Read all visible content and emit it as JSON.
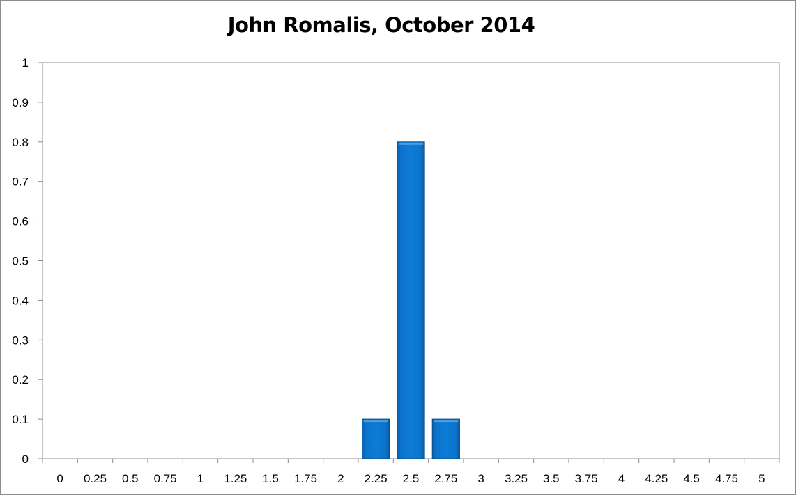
{
  "chart_data": {
    "type": "bar",
    "title": "John Romalis, October 2014",
    "xlabel": "",
    "ylabel": "",
    "categories": [
      "0",
      "0.25",
      "0.5",
      "0.75",
      "1",
      "1.25",
      "1.5",
      "1.75",
      "2",
      "2.25",
      "2.5",
      "2.75",
      "3",
      "3.25",
      "3.5",
      "3.75",
      "4",
      "4.25",
      "4.5",
      "4.75",
      "5"
    ],
    "values": [
      0,
      0,
      0,
      0,
      0,
      0,
      0,
      0,
      0,
      0.1,
      0.8,
      0.1,
      0,
      0,
      0,
      0,
      0,
      0,
      0,
      0,
      0
    ],
    "ylim": [
      0,
      1
    ],
    "yticks": [
      "0",
      "0.1",
      "0.2",
      "0.3",
      "0.4",
      "0.5",
      "0.6",
      "0.7",
      "0.8",
      "0.9",
      "1"
    ],
    "grid": false,
    "legend": "none",
    "bar_color": "#0a72c9",
    "bar_edge_color": "#0a4f8a"
  }
}
